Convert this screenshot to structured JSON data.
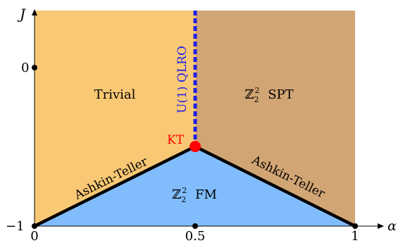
{
  "axes": {
    "y_label": "J",
    "x_label": "α",
    "y_ticks": [
      "0",
      "−1"
    ],
    "x_ticks": [
      "0",
      "0.5",
      "1"
    ]
  },
  "regions": {
    "trivial": {
      "label": "Trivial",
      "color": "#f9c874"
    },
    "spt": {
      "label_sym": "ℤ",
      "label_sub": "2",
      "label_sup": "2",
      "label_rest": "SPT",
      "color": "#d2a574"
    },
    "fm": {
      "label_sym": "ℤ",
      "label_sub": "2",
      "label_sup": "2",
      "label_rest": "FM",
      "color": "#81bdfc"
    }
  },
  "lines": {
    "qlro": {
      "label": "U(1) QLRO",
      "color": "#1f1fe6"
    },
    "ashkin_teller_left": {
      "label": "Ashkin-Teller",
      "color": "#000000"
    },
    "ashkin_teller_right": {
      "label": "Ashkin-Teller",
      "color": "#000000"
    }
  },
  "critical_point": {
    "label": "KT",
    "color": "#ff0000"
  }
}
